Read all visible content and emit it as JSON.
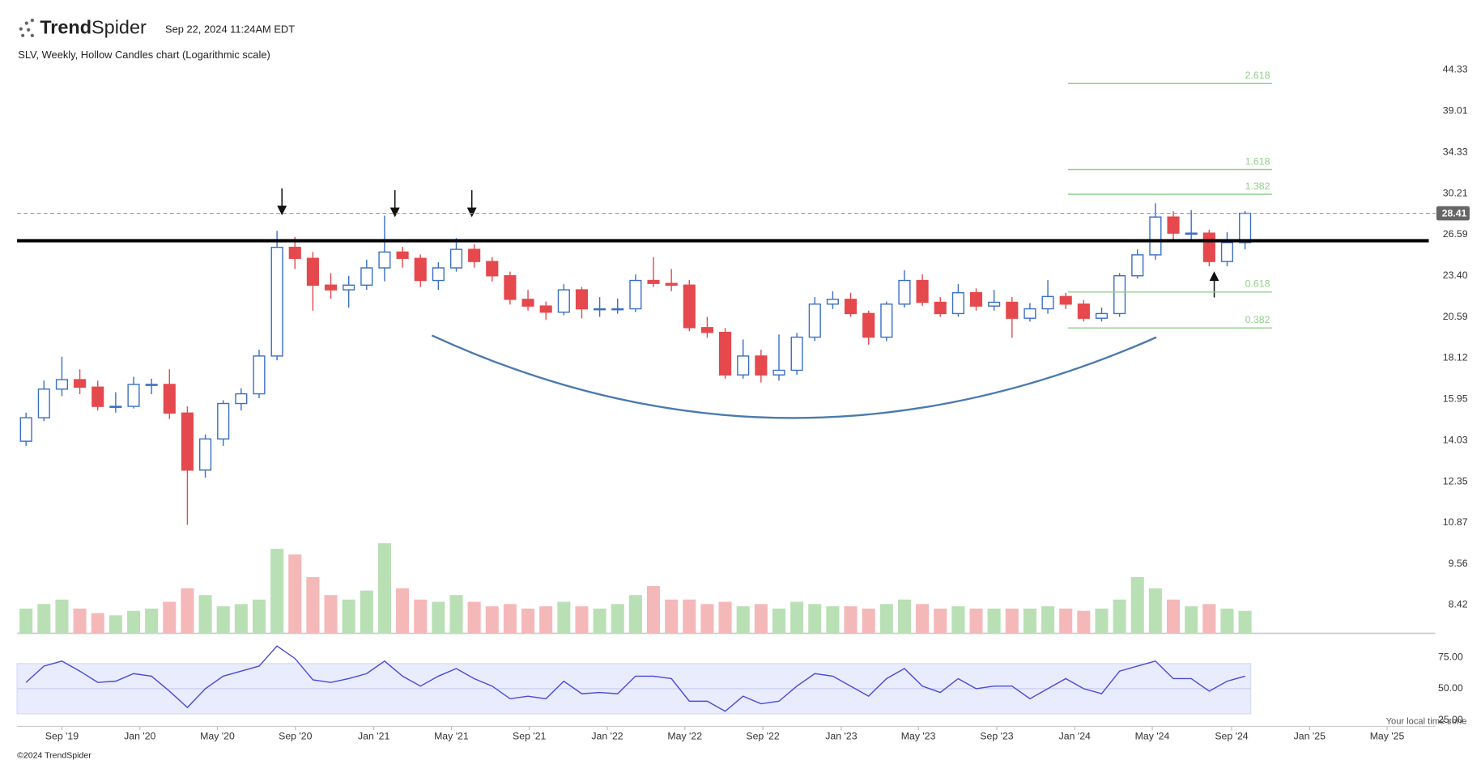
{
  "header": {
    "brand_bold": "Trend",
    "brand_light": "Spider",
    "timestamp": "Sep 22, 2024 11:24AM EDT"
  },
  "chart_data": {
    "type": "candlestick",
    "subtitle": "SLV, Weekly, Hollow Candles chart (Logarithmic scale)",
    "log_scale": true,
    "xlim": [
      0,
      315
    ],
    "xticks": [
      {
        "value": 10,
        "label": "Sep '19"
      },
      {
        "value": 27.4,
        "label": "Jan '20"
      },
      {
        "value": 44.7,
        "label": "May '20"
      },
      {
        "value": 62.1,
        "label": "Sep '20"
      },
      {
        "value": 79.6,
        "label": "Jan '21"
      },
      {
        "value": 96.9,
        "label": "May '21"
      },
      {
        "value": 114.3,
        "label": "Sep '21"
      },
      {
        "value": 131.7,
        "label": "Jan '22"
      },
      {
        "value": 149,
        "label": "May '22"
      },
      {
        "value": 166.4,
        "label": "Sep '22"
      },
      {
        "value": 183.9,
        "label": "Jan '23"
      },
      {
        "value": 201.1,
        "label": "May '23"
      },
      {
        "value": 218.6,
        "label": "Sep '23"
      },
      {
        "value": 236,
        "label": "Jan '24"
      },
      {
        "value": 253.3,
        "label": "May '24"
      },
      {
        "value": 271,
        "label": "Sep '24"
      },
      {
        "value": 288.4,
        "label": "Jan '25"
      },
      {
        "value": 305.7,
        "label": "May '25"
      }
    ],
    "ylim": [
      7.71,
      48.9
    ],
    "yticks": [
      44.33,
      39.01,
      34.33,
      30.21,
      26.59,
      {
        "value": 23.4,
        "label": "23.40"
      },
      20.59,
      18.12,
      15.95,
      14.03,
      12.35,
      10.87,
      9.56,
      8.42
    ],
    "up_color": "#3b6fc4",
    "down_color": "#e5484d",
    "volume_up_color": "#b9e0b4",
    "volume_down_color": "#f5b8b8",
    "candles": {
      "x": [
        2,
        6,
        10,
        14,
        18,
        22,
        26,
        30,
        34,
        38,
        42,
        46,
        50,
        54,
        58,
        62,
        66,
        70,
        74,
        78,
        82,
        86,
        90,
        94,
        98,
        102,
        106,
        110,
        114,
        118,
        122,
        126,
        130,
        134,
        138,
        142,
        146,
        150,
        154,
        158,
        162,
        166,
        170,
        174,
        178,
        182,
        186,
        190,
        194,
        198,
        202,
        206,
        210,
        214,
        218,
        222,
        226,
        230,
        234,
        238,
        242,
        246,
        250,
        254,
        258,
        262,
        266,
        270,
        274
      ],
      "open": [
        14.0,
        15.06,
        16.46,
        16.95,
        16.56,
        15.6,
        15.6,
        16.7,
        16.7,
        15.28,
        12.8,
        14.1,
        15.74,
        16.22,
        18.24,
        25.56,
        24.7,
        22.73,
        22.4,
        22.73,
        23.98,
        25.19,
        24.7,
        23.06,
        23.98,
        25.4,
        24.46,
        23.4,
        21.75,
        21.3,
        20.9,
        22.4,
        21.12,
        21.12,
        21.12,
        23.06,
        22.85,
        22.73,
        19.92,
        19.63,
        17.2,
        18.24,
        17.2,
        17.45,
        19.34,
        21.43,
        21.75,
        20.81,
        19.34,
        21.43,
        23.06,
        21.55,
        20.81,
        22.2,
        21.3,
        21.55,
        20.51,
        21.12,
        21.94,
        21.43,
        20.51,
        20.81,
        23.4,
        24.97,
        28.08,
        26.71,
        26.71,
        24.46,
        25.94
      ],
      "high": [
        15.3,
        16.9,
        18.2,
        17.5,
        16.9,
        16.3,
        17.1,
        17.0,
        17.5,
        15.6,
        14.3,
        15.9,
        16.5,
        18.6,
        26.9,
        26.4,
        25.2,
        23.6,
        23.4,
        24.6,
        28.2,
        25.6,
        25.0,
        24.4,
        26.3,
        25.8,
        24.8,
        23.7,
        22.4,
        21.6,
        22.8,
        22.6,
        21.9,
        21.8,
        23.5,
        24.8,
        23.9,
        23.1,
        20.6,
        19.9,
        19.2,
        18.6,
        19.5,
        19.6,
        21.9,
        22.3,
        22.2,
        21.0,
        21.6,
        23.8,
        23.5,
        21.9,
        22.8,
        22.5,
        22.4,
        21.9,
        21.5,
        23.1,
        22.2,
        21.7,
        21.2,
        23.6,
        25.4,
        29.3,
        28.6,
        28.7,
        27.0,
        26.8,
        28.6
      ],
      "low": [
        13.8,
        14.9,
        16.1,
        16.2,
        15.4,
        15.3,
        15.5,
        16.2,
        15.0,
        10.8,
        12.5,
        13.8,
        15.4,
        16.0,
        18.0,
        23.9,
        21.0,
        21.8,
        21.2,
        22.4,
        23.0,
        24.0,
        22.6,
        22.4,
        23.7,
        24.0,
        23.0,
        21.4,
        21.0,
        20.4,
        20.7,
        20.5,
        20.6,
        20.8,
        20.9,
        22.6,
        22.3,
        19.7,
        19.3,
        17.0,
        17.0,
        16.8,
        16.9,
        17.2,
        19.1,
        21.1,
        20.6,
        18.9,
        19.1,
        21.2,
        21.3,
        20.6,
        20.6,
        21.0,
        21.0,
        19.3,
        20.3,
        20.8,
        21.1,
        20.3,
        20.3,
        20.6,
        23.2,
        24.6,
        26.0,
        26.2,
        24.1,
        24.1,
        25.4
      ],
      "close": [
        15.06,
        16.46,
        16.95,
        16.56,
        15.6,
        15.6,
        16.7,
        16.7,
        15.28,
        12.8,
        14.1,
        15.74,
        16.22,
        18.24,
        25.56,
        24.7,
        22.73,
        22.4,
        22.73,
        23.98,
        25.19,
        24.7,
        23.06,
        23.98,
        25.4,
        24.46,
        23.4,
        21.75,
        21.3,
        20.9,
        22.4,
        21.12,
        21.12,
        21.12,
        23.06,
        22.85,
        22.73,
        19.92,
        19.63,
        17.2,
        18.24,
        17.2,
        17.45,
        19.34,
        21.43,
        21.75,
        20.81,
        19.34,
        21.43,
        23.06,
        21.55,
        20.81,
        22.2,
        21.3,
        21.55,
        20.51,
        21.12,
        21.94,
        21.43,
        20.51,
        20.81,
        23.4,
        24.97,
        28.08,
        26.71,
        26.71,
        24.46,
        25.94,
        28.41
      ]
    },
    "volume": [
      22,
      26,
      30,
      22,
      18,
      16,
      20,
      22,
      28,
      40,
      34,
      24,
      26,
      30,
      75,
      70,
      50,
      34,
      30,
      38,
      80,
      40,
      30,
      28,
      34,
      28,
      24,
      26,
      22,
      24,
      28,
      24,
      22,
      26,
      34,
      42,
      30,
      30,
      26,
      28,
      24,
      26,
      22,
      28,
      26,
      24,
      24,
      22,
      26,
      30,
      26,
      22,
      24,
      22,
      22,
      22,
      22,
      24,
      22,
      20,
      22,
      30,
      50,
      40,
      30,
      24,
      26,
      22,
      20
    ],
    "rsi": {
      "color": "#4a4ad8",
      "band": [
        30,
        70
      ],
      "ylim": [
        20,
        88
      ],
      "yticks": [
        {
          "value": 75,
          "label": "75.00"
        },
        {
          "value": 50,
          "label": "50.00"
        },
        {
          "value": 25,
          "label": "25.00"
        }
      ],
      "values": [
        55,
        68,
        72,
        64,
        55,
        56,
        62,
        60,
        48,
        35,
        50,
        60,
        64,
        68,
        84,
        74,
        57,
        55,
        58,
        62,
        72,
        60,
        52,
        60,
        66,
        58,
        52,
        42,
        44,
        42,
        56,
        46,
        47,
        46,
        60,
        60,
        58,
        40,
        40,
        32,
        44,
        38,
        40,
        52,
        62,
        60,
        52,
        44,
        58,
        66,
        52,
        47,
        58,
        50,
        52,
        52,
        42,
        50,
        58,
        50,
        46,
        64,
        68,
        72,
        58,
        58,
        48,
        56,
        60
      ]
    },
    "resistance": 26.09,
    "last_price": 28.41,
    "fibonacci": {
      "color": "#8fcf88",
      "x": [
        234.5,
        280
      ],
      "levels": [
        {
          "ratio": 2.618,
          "price": 42.5
        },
        {
          "ratio": 1.618,
          "price": 32.54
        },
        {
          "ratio": 1.382,
          "price": 30.14
        },
        {
          "ratio": 0.618,
          "price": 22.25
        },
        {
          "ratio": 0.382,
          "price": 19.9
        }
      ]
    },
    "timezone_note": "Your local time zone",
    "footer": "©2024 TrendSpider"
  }
}
